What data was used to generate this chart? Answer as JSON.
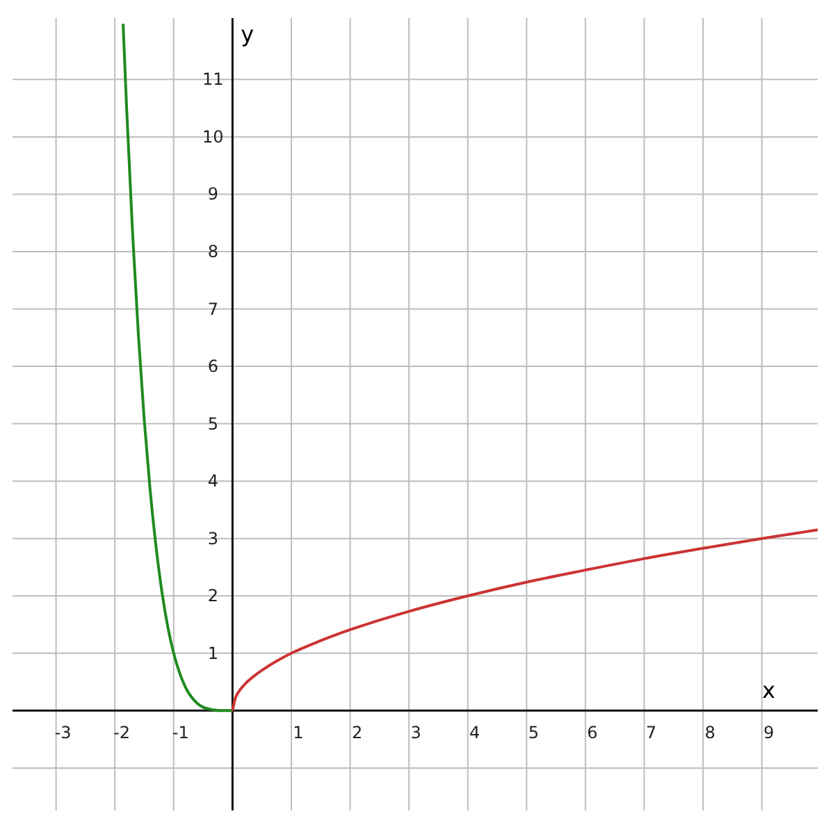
{
  "chart_data": {
    "type": "line",
    "xlabel": "x",
    "ylabel": "y",
    "xlim": [
      -3.74,
      9.95
    ],
    "ylim": [
      -1.74,
      12.07
    ],
    "xticks": [
      -3,
      -2,
      -1,
      {
        "value": 0,
        "label": null
      },
      1,
      2,
      3,
      4,
      5,
      6,
      7,
      8,
      9
    ],
    "yticks": [
      {
        "value": -1,
        "label": null
      },
      {
        "value": 0,
        "label": null
      },
      1,
      2,
      3,
      4,
      5,
      6,
      7,
      8,
      9,
      10,
      11
    ],
    "grid": true,
    "marker": "none",
    "line_style": "solid",
    "series": [
      {
        "color": "#1f8a1f",
        "x": [
          -1.86,
          -1.8,
          -1.7,
          -1.6,
          -1.5,
          -1.4,
          -1.3,
          -1.2,
          -1.1,
          -1,
          -0.9,
          -0.8,
          -0.7,
          -0.6,
          -0.5,
          -0.4,
          -0.3,
          -0.2,
          0
        ],
        "values": [
          11.97,
          10.5,
          8.35,
          6.55,
          5.06,
          3.84,
          2.86,
          2.07,
          1.46,
          1,
          0.66,
          0.41,
          0.24,
          0.13,
          0.06,
          0.03,
          0.01,
          0,
          0
        ]
      },
      {
        "color": "#cc3333",
        "x": [
          0,
          0.05,
          0.1,
          0.2,
          0.4,
          0.6,
          1,
          1.5,
          2,
          3,
          4,
          5,
          6,
          7,
          8,
          9,
          9.95
        ],
        "values": [
          0,
          0.22,
          0.32,
          0.45,
          0.63,
          0.77,
          1,
          1.22,
          1.41,
          1.73,
          2,
          2.24,
          2.45,
          2.65,
          2.83,
          3,
          3.15
        ]
      }
    ]
  }
}
